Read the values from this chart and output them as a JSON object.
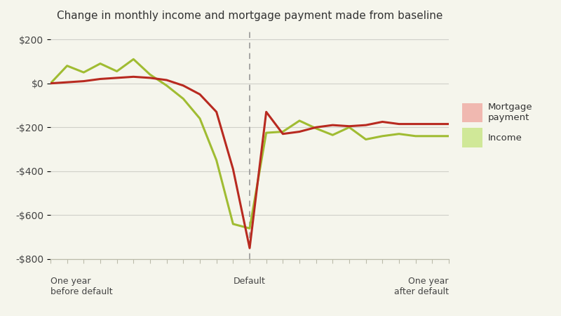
{
  "title": "Change in monthly income and mortgage payment made from baseline",
  "mortgage_x": [
    -12,
    -11,
    -10,
    -9,
    -8,
    -7,
    -6,
    -5,
    -4,
    -3,
    -2,
    -1,
    0,
    1,
    2,
    3,
    4,
    5,
    6,
    7,
    8,
    9,
    10,
    11,
    12
  ],
  "mortgage_y": [
    0,
    5,
    10,
    20,
    25,
    30,
    25,
    15,
    -10,
    -50,
    -130,
    -390,
    -750,
    -130,
    -230,
    -220,
    -200,
    -190,
    -195,
    -190,
    -175,
    -185,
    -185,
    -185,
    -185
  ],
  "income_x": [
    -12,
    -11,
    -10,
    -9,
    -8,
    -7,
    -6,
    -5,
    -4,
    -3,
    -2,
    -1,
    0,
    1,
    2,
    3,
    4,
    5,
    6,
    7,
    8,
    9,
    10,
    11,
    12
  ],
  "income_y": [
    0,
    80,
    50,
    90,
    55,
    110,
    40,
    -10,
    -70,
    -160,
    -350,
    -640,
    -660,
    -225,
    -220,
    -170,
    -205,
    -235,
    -200,
    -255,
    -240,
    -230,
    -240,
    -240,
    -240
  ],
  "mortgage_color": "#b82a20",
  "income_color": "#a0bc32",
  "mortgage_legend_facecolor": "#f0b8b0",
  "income_legend_facecolor": "#d0e898",
  "ylim": [
    -800,
    250
  ],
  "yticks": [
    -800,
    -600,
    -400,
    -200,
    0,
    200
  ],
  "ytick_labels": [
    "-$800",
    "-$600",
    "-$400",
    "-$200",
    "$0",
    "$200"
  ],
  "xlim": [
    -12,
    12
  ],
  "default_x": 0,
  "xlabel_left": "One year\nbefore default",
  "xlabel_default": "Default",
  "xlabel_right": "One year\nafter default",
  "background_color": "#f5f5ec",
  "grid_color": "#d0d0c8",
  "spine_color": "#bbbbaa"
}
